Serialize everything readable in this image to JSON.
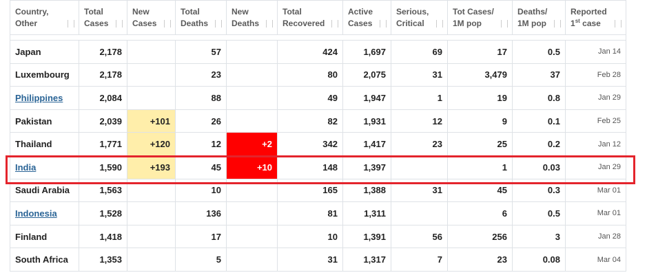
{
  "table": {
    "columns": [
      {
        "key": "country",
        "lines": [
          "Country,",
          "Other"
        ]
      },
      {
        "key": "total_cases",
        "lines": [
          "Total",
          "Cases"
        ]
      },
      {
        "key": "new_cases",
        "lines": [
          "New",
          "Cases"
        ]
      },
      {
        "key": "total_deaths",
        "lines": [
          "Total",
          "Deaths"
        ]
      },
      {
        "key": "new_deaths",
        "lines": [
          "New",
          "Deaths"
        ]
      },
      {
        "key": "total_recovered",
        "lines": [
          "Total",
          "Recovered"
        ]
      },
      {
        "key": "active_cases",
        "lines": [
          "Active",
          "Cases"
        ]
      },
      {
        "key": "serious",
        "lines": [
          "Serious,",
          "Critical"
        ]
      },
      {
        "key": "cases_per_1m",
        "lines": [
          "Tot Cases/",
          "1M pop"
        ]
      },
      {
        "key": "deaths_per_1m",
        "lines": [
          "Deaths/",
          "1M pop"
        ]
      },
      {
        "key": "reported",
        "lines": [
          "Reported"
        ],
        "ordinal": "1",
        "suffix": "st",
        "tail": "case"
      }
    ],
    "rows": [
      {
        "country": "Japan",
        "total_cases": "2,178",
        "total_deaths": "57",
        "total_recovered": "424",
        "active_cases": "1,697",
        "serious": "69",
        "cases_per_1m": "17",
        "deaths_per_1m": "0.5",
        "reported": "Jan 14"
      },
      {
        "country": "Luxembourg",
        "total_cases": "2,178",
        "total_deaths": "23",
        "total_recovered": "80",
        "active_cases": "2,075",
        "serious": "31",
        "cases_per_1m": "3,479",
        "deaths_per_1m": "37",
        "reported": "Feb 28"
      },
      {
        "country": "Philippines",
        "link": true,
        "total_cases": "2,084",
        "total_deaths": "88",
        "total_recovered": "49",
        "active_cases": "1,947",
        "serious": "1",
        "cases_per_1m": "19",
        "deaths_per_1m": "0.8",
        "reported": "Jan 29"
      },
      {
        "country": "Pakistan",
        "total_cases": "2,039",
        "new_cases": "+101",
        "total_deaths": "26",
        "total_recovered": "82",
        "active_cases": "1,931",
        "serious": "12",
        "cases_per_1m": "9",
        "deaths_per_1m": "0.1",
        "reported": "Feb 25"
      },
      {
        "country": "Thailand",
        "total_cases": "1,771",
        "new_cases": "+120",
        "total_deaths": "12",
        "new_deaths": "+2",
        "total_recovered": "342",
        "active_cases": "1,417",
        "serious": "23",
        "cases_per_1m": "25",
        "deaths_per_1m": "0.2",
        "reported": "Jan 12"
      },
      {
        "country": "India",
        "link": true,
        "total_cases": "1,590",
        "new_cases": "+193",
        "total_deaths": "45",
        "new_deaths": "+10",
        "total_recovered": "148",
        "active_cases": "1,397",
        "cases_per_1m": "1",
        "deaths_per_1m": "0.03",
        "reported": "Jan 29"
      },
      {
        "country": "Saudi Arabia",
        "total_cases": "1,563",
        "total_deaths": "10",
        "total_recovered": "165",
        "active_cases": "1,388",
        "serious": "31",
        "cases_per_1m": "45",
        "deaths_per_1m": "0.3",
        "reported": "Mar 01"
      },
      {
        "country": "Indonesia",
        "link": true,
        "total_cases": "1,528",
        "total_deaths": "136",
        "total_recovered": "81",
        "active_cases": "1,311",
        "cases_per_1m": "6",
        "deaths_per_1m": "0.5",
        "reported": "Mar 01"
      },
      {
        "country": "Finland",
        "total_cases": "1,418",
        "total_deaths": "17",
        "total_recovered": "10",
        "active_cases": "1,391",
        "serious": "56",
        "cases_per_1m": "256",
        "deaths_per_1m": "3",
        "reported": "Jan 28"
      },
      {
        "country": "South Africa",
        "total_cases": "1,353",
        "total_deaths": "5",
        "total_recovered": "31",
        "active_cases": "1,317",
        "serious": "7",
        "cases_per_1m": "23",
        "deaths_per_1m": "0.08",
        "reported": "Mar 04"
      }
    ]
  }
}
